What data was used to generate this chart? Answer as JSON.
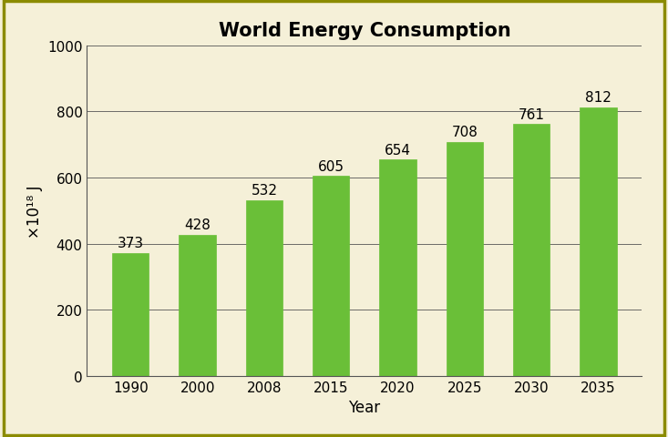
{
  "title": "World Energy Consumption",
  "xlabel": "Year",
  "ylabel": "×10¹⁸ J",
  "categories": [
    "1990",
    "2000",
    "2008",
    "2015",
    "2020",
    "2025",
    "2030",
    "2035"
  ],
  "values": [
    373,
    428,
    532,
    605,
    654,
    708,
    761,
    812
  ],
  "bar_color": "#6abf38",
  "bar_edgecolor": "#4a8f1a",
  "ylim": [
    0,
    1000
  ],
  "yticks": [
    0,
    200,
    400,
    600,
    800,
    1000
  ],
  "background_color": "#f5f0d8",
  "plot_background_color": "#f5f0d8",
  "title_fontsize": 15,
  "axis_label_fontsize": 12,
  "tick_fontsize": 11,
  "annotation_fontsize": 11,
  "grid_color": "#555555",
  "border_color": "#8b8b00",
  "bar_width": 0.55
}
